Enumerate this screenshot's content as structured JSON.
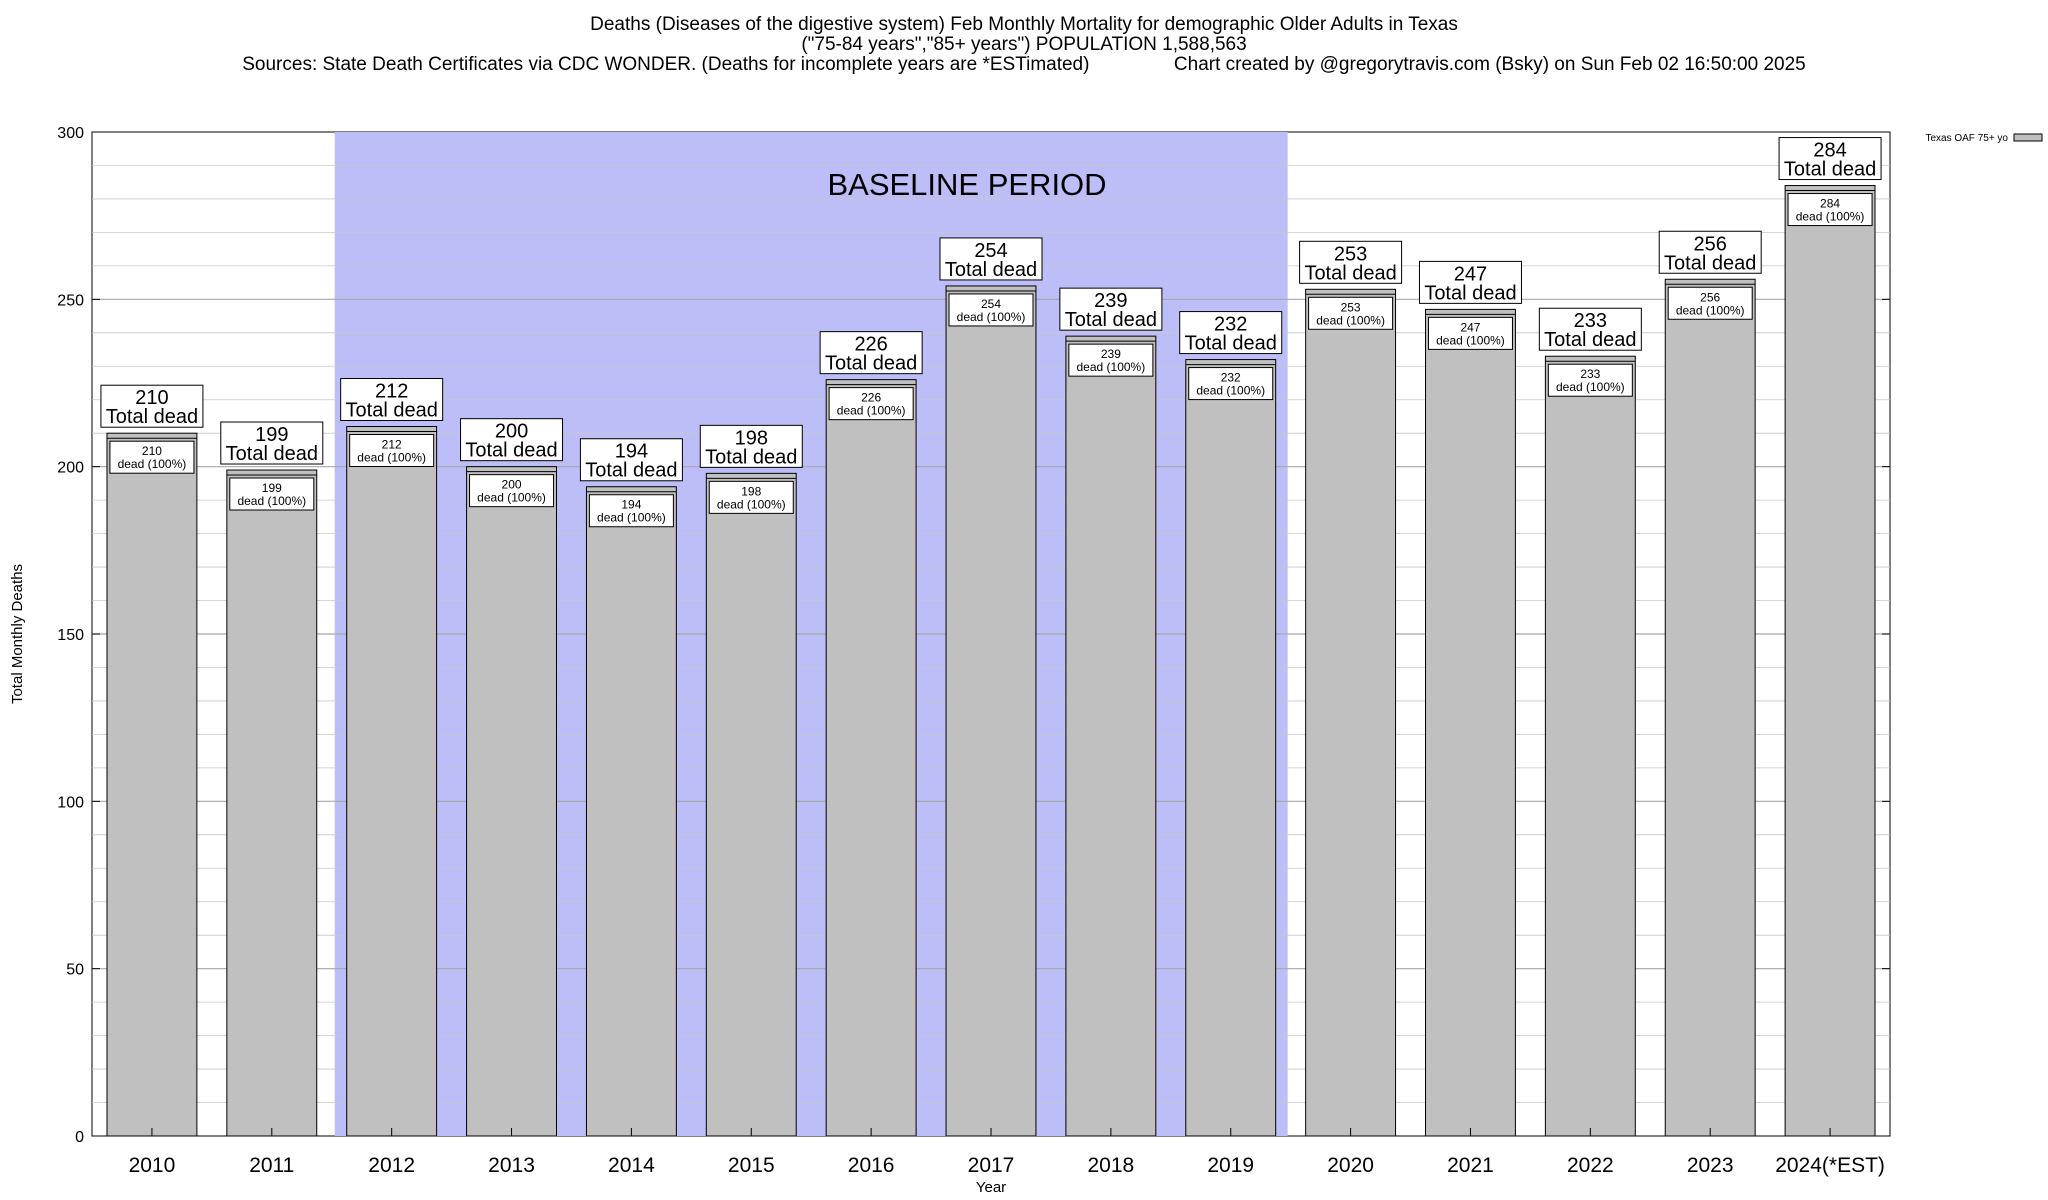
{
  "chart_data": {
    "type": "bar",
    "title_lines": [
      "Deaths (Diseases of the digestive system) Feb Monthly Mortality for demographic Older Adults in Texas",
      "(\"75-84 years\",\"85+ years\") POPULATION 1,588,563",
      "Sources: State Death Certificates via CDC WONDER. (Deaths for incomplete years are *ESTimated)                Chart created by @gregorytravis.com (Bsky) on Sun Feb 02 16:50:00 2025"
    ],
    "xlabel": "Year",
    "ylabel": "Total Monthly Deaths",
    "ylim": [
      0,
      300
    ],
    "yticks": [
      0,
      50,
      100,
      150,
      200,
      250,
      300
    ],
    "categories": [
      "2010",
      "2011",
      "2012",
      "2013",
      "2014",
      "2015",
      "2016",
      "2017",
      "2018",
      "2019",
      "2020",
      "2021",
      "2022",
      "2023",
      "2024(*EST)"
    ],
    "series": [
      {
        "name": "Texas OAF 75+ yo",
        "values": [
          210,
          199,
          212,
          200,
          194,
          198,
          226,
          254,
          239,
          232,
          253,
          247,
          233,
          256,
          284
        ]
      }
    ],
    "total_label": "Total dead",
    "inner_label": "dead (100%)",
    "baseline": {
      "label": "BASELINE PERIOD",
      "from": "2012",
      "to": "2019"
    },
    "legend_label": "Texas OAF 75+ yo",
    "legend_position": "top-right",
    "grid": true,
    "colors": {
      "bar": "#c0c0c0",
      "baseline": "#bdbdf8",
      "grid": "#c8c8c8"
    }
  }
}
